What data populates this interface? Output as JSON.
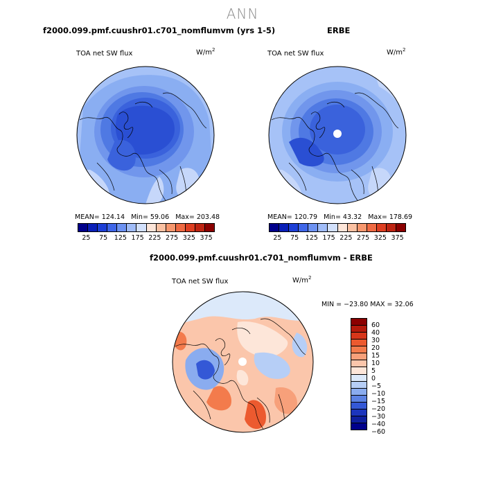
{
  "figure": {
    "title": "ANN"
  },
  "panels": [
    {
      "id": "model",
      "header": "f2000.099.pmf.cuushr01.c701_nomflumvm (yrs 1-5)",
      "variable": "TOA net SW flux",
      "units_base": "W/m",
      "units_exp": "2",
      "stats": {
        "mean": "MEAN= 124.14",
        "min": "Min=  59.06",
        "max": "Max= 203.48"
      }
    },
    {
      "id": "obs",
      "header": "ERBE",
      "variable": "TOA net SW flux",
      "units_base": "W/m",
      "units_exp": "2",
      "stats": {
        "mean": "MEAN= 120.79",
        "min": "Min=  43.32",
        "max": "Max= 178.69"
      }
    },
    {
      "id": "diff",
      "header": "f2000.099.pmf.cuushr01.c701_nomflumvm - ERBE",
      "variable": "TOA net SW flux",
      "units_base": "W/m",
      "units_exp": "2",
      "stats_line": "MIN = −23.80  MAX =  32.06"
    }
  ],
  "abs_colorbar": {
    "colors": [
      "#00008b",
      "#0a1fb8",
      "#1d3fd6",
      "#3f66e8",
      "#6d92f2",
      "#a0bcf8",
      "#d2e0fb",
      "#fde5d8",
      "#fbc1a2",
      "#f7976e",
      "#ef6a43",
      "#de3f22",
      "#be2412",
      "#8b0000"
    ],
    "ticks": [
      "25",
      "75",
      "125",
      "175",
      "225",
      "275",
      "325",
      "375"
    ]
  },
  "diff_colorbar": {
    "colors": [
      "#8b0000",
      "#b51a0b",
      "#d7361a",
      "#ec5a2f",
      "#f37b4c",
      "#f7a07a",
      "#fbc6ab",
      "#fde6d9",
      "#dce9fa",
      "#b6cef6",
      "#8aacef",
      "#5c82e3",
      "#3458d6",
      "#1c35bd",
      "#0e1f9e",
      "#00008b"
    ],
    "labels": [
      "60",
      "40",
      "30",
      "20",
      "15",
      "10",
      "5",
      "0",
      "−5",
      "−10",
      "−15",
      "−20",
      "−30",
      "−40",
      "−60"
    ]
  }
}
